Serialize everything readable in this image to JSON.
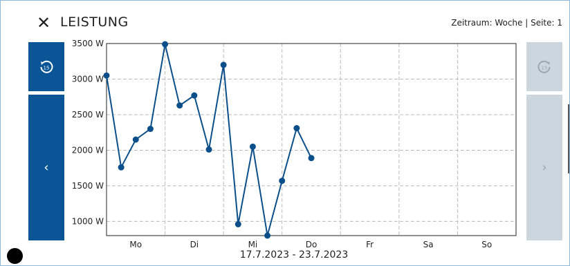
{
  "header": {
    "close": "✕",
    "title": "LEISTUNG",
    "info": "Zeitraum: Woche | Seite: 1"
  },
  "buttons": {
    "skip_label": "15"
  },
  "chart_data": {
    "type": "line",
    "categories": [
      "Mo",
      "Di",
      "Mi",
      "Do",
      "Fr",
      "Sa",
      "So"
    ],
    "x": [
      0,
      0.25,
      0.5,
      0.75,
      1,
      1.25,
      1.5,
      1.75,
      2,
      2.25,
      2.5,
      2.75,
      3,
      3.25,
      3.5
    ],
    "values": [
      3050,
      1760,
      2150,
      2300,
      3490,
      2630,
      2770,
      2010,
      3200,
      960,
      2050,
      800,
      1570,
      2310,
      1890
    ],
    "color": "#0a4f8a",
    "xlim": [
      0,
      7
    ],
    "ylim": [
      800,
      3500
    ],
    "yticks": [
      {
        "value": 1000,
        "label": "1000 W"
      },
      {
        "value": 1500,
        "label": "1500 W"
      },
      {
        "value": 2000,
        "label": "2000 W"
      },
      {
        "value": 2500,
        "label": "2500 W"
      },
      {
        "value": 3000,
        "label": "3000 W"
      },
      {
        "value": 3500,
        "label": "3500 W"
      }
    ],
    "xlabel": "17.7.2023 - 23.7.2023",
    "grid": true
  }
}
